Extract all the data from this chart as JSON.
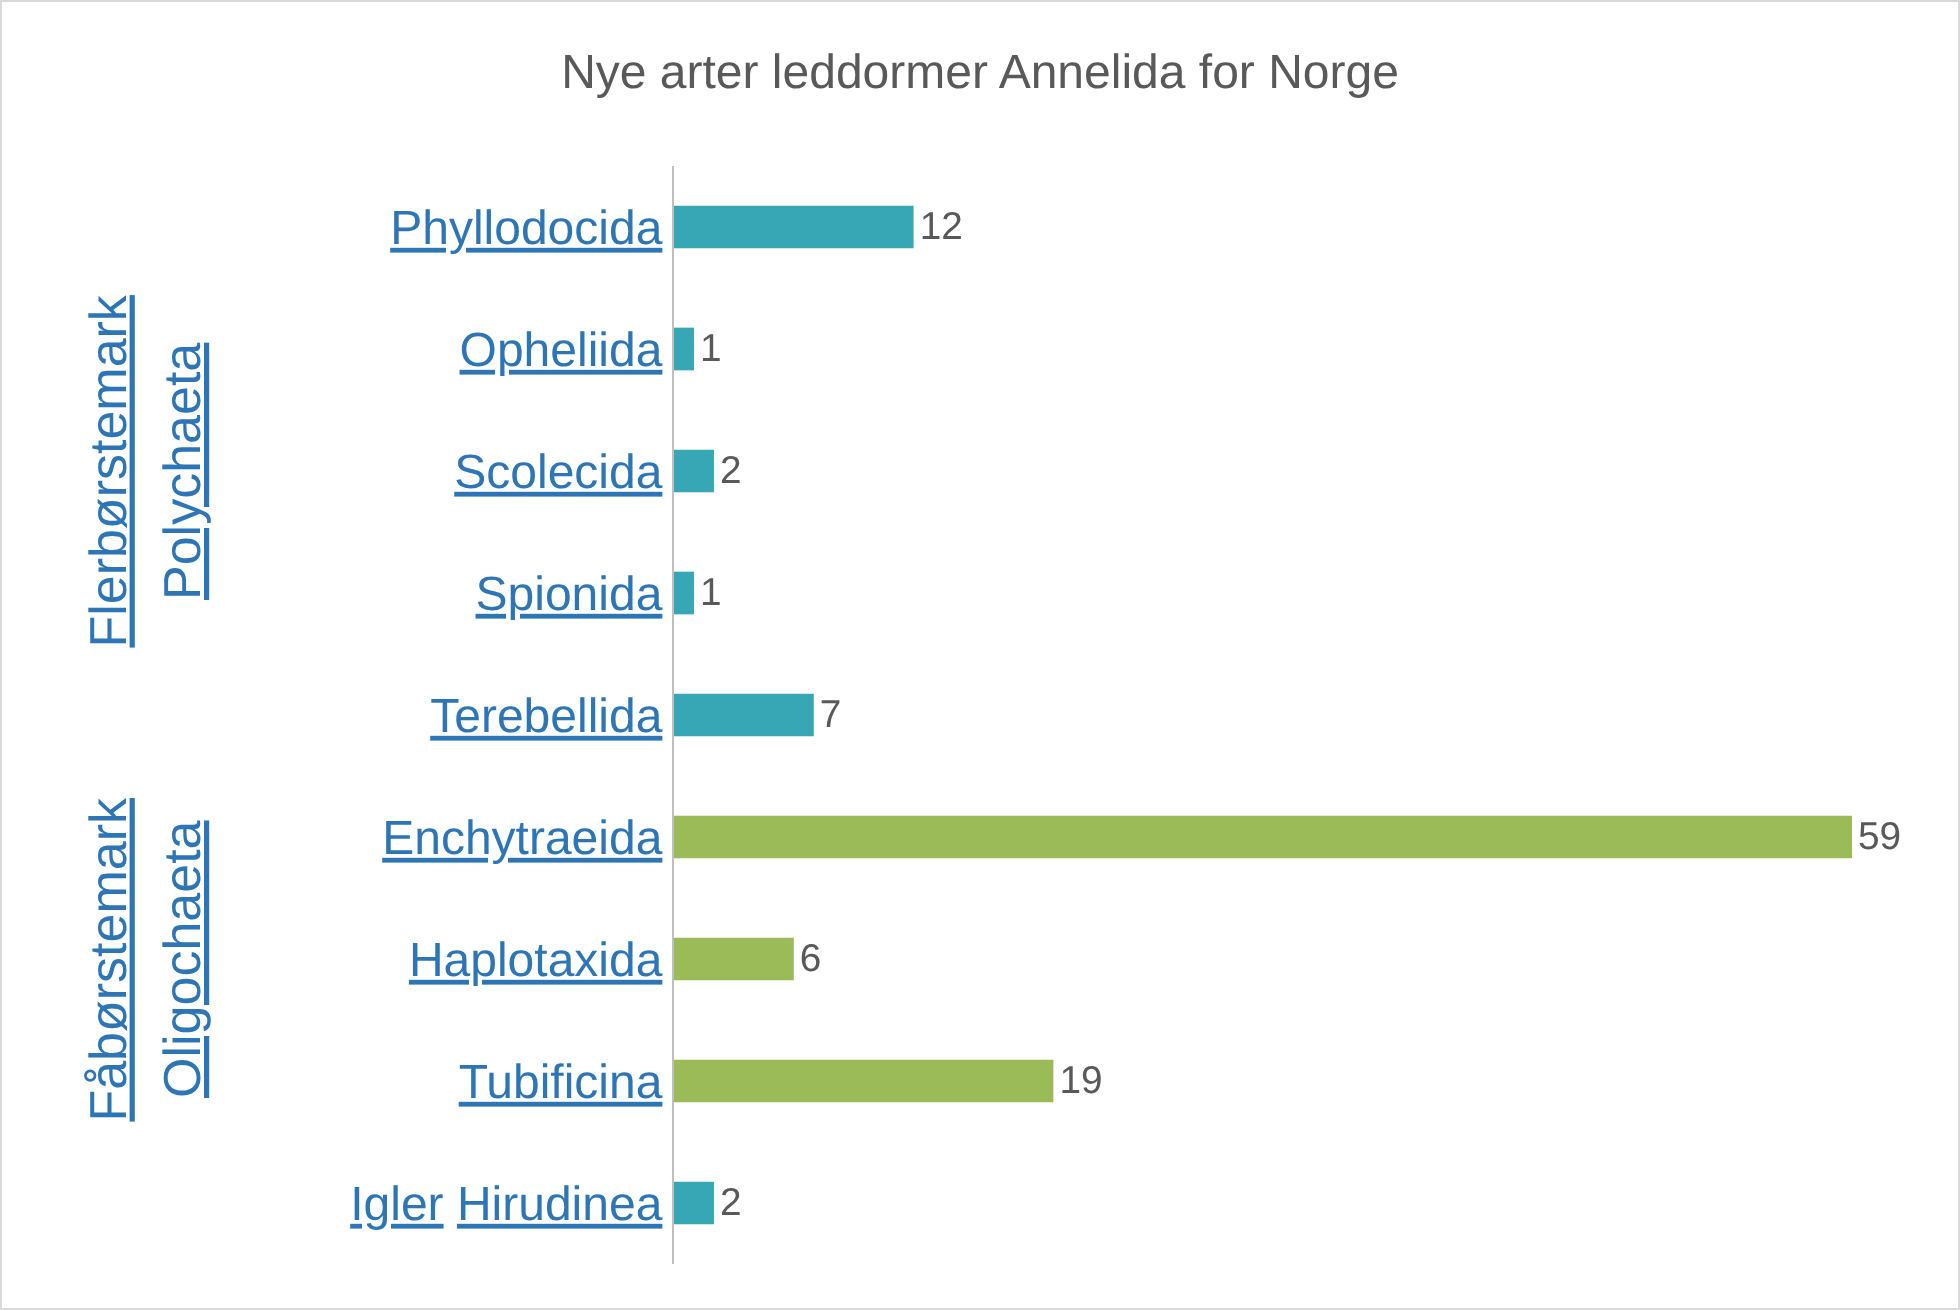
{
  "chart_data": {
    "type": "bar",
    "orientation": "horizontal",
    "title": "Nye arter leddormer Annelida for Norge",
    "categories": [
      "Phyllodocida",
      "Opheliida",
      "Scolecida",
      "Spionida",
      "Terebellida",
      "Enchytraeida",
      "Haplotaxida",
      "Tubificina",
      "Igler Hirudinea"
    ],
    "values": [
      12,
      1,
      2,
      1,
      7,
      59,
      6,
      19,
      2
    ],
    "colors": [
      "#37a6b5",
      "#37a6b5",
      "#37a6b5",
      "#37a6b5",
      "#37a6b5",
      "#9bbb59",
      "#9bbb59",
      "#9bbb59",
      "#37a6b5"
    ],
    "data_labels": true,
    "annotations": [
      "Flerbørstemark",
      "Polychaeta",
      "Fåbørstemark",
      "Oligochaeta"
    ]
  }
}
